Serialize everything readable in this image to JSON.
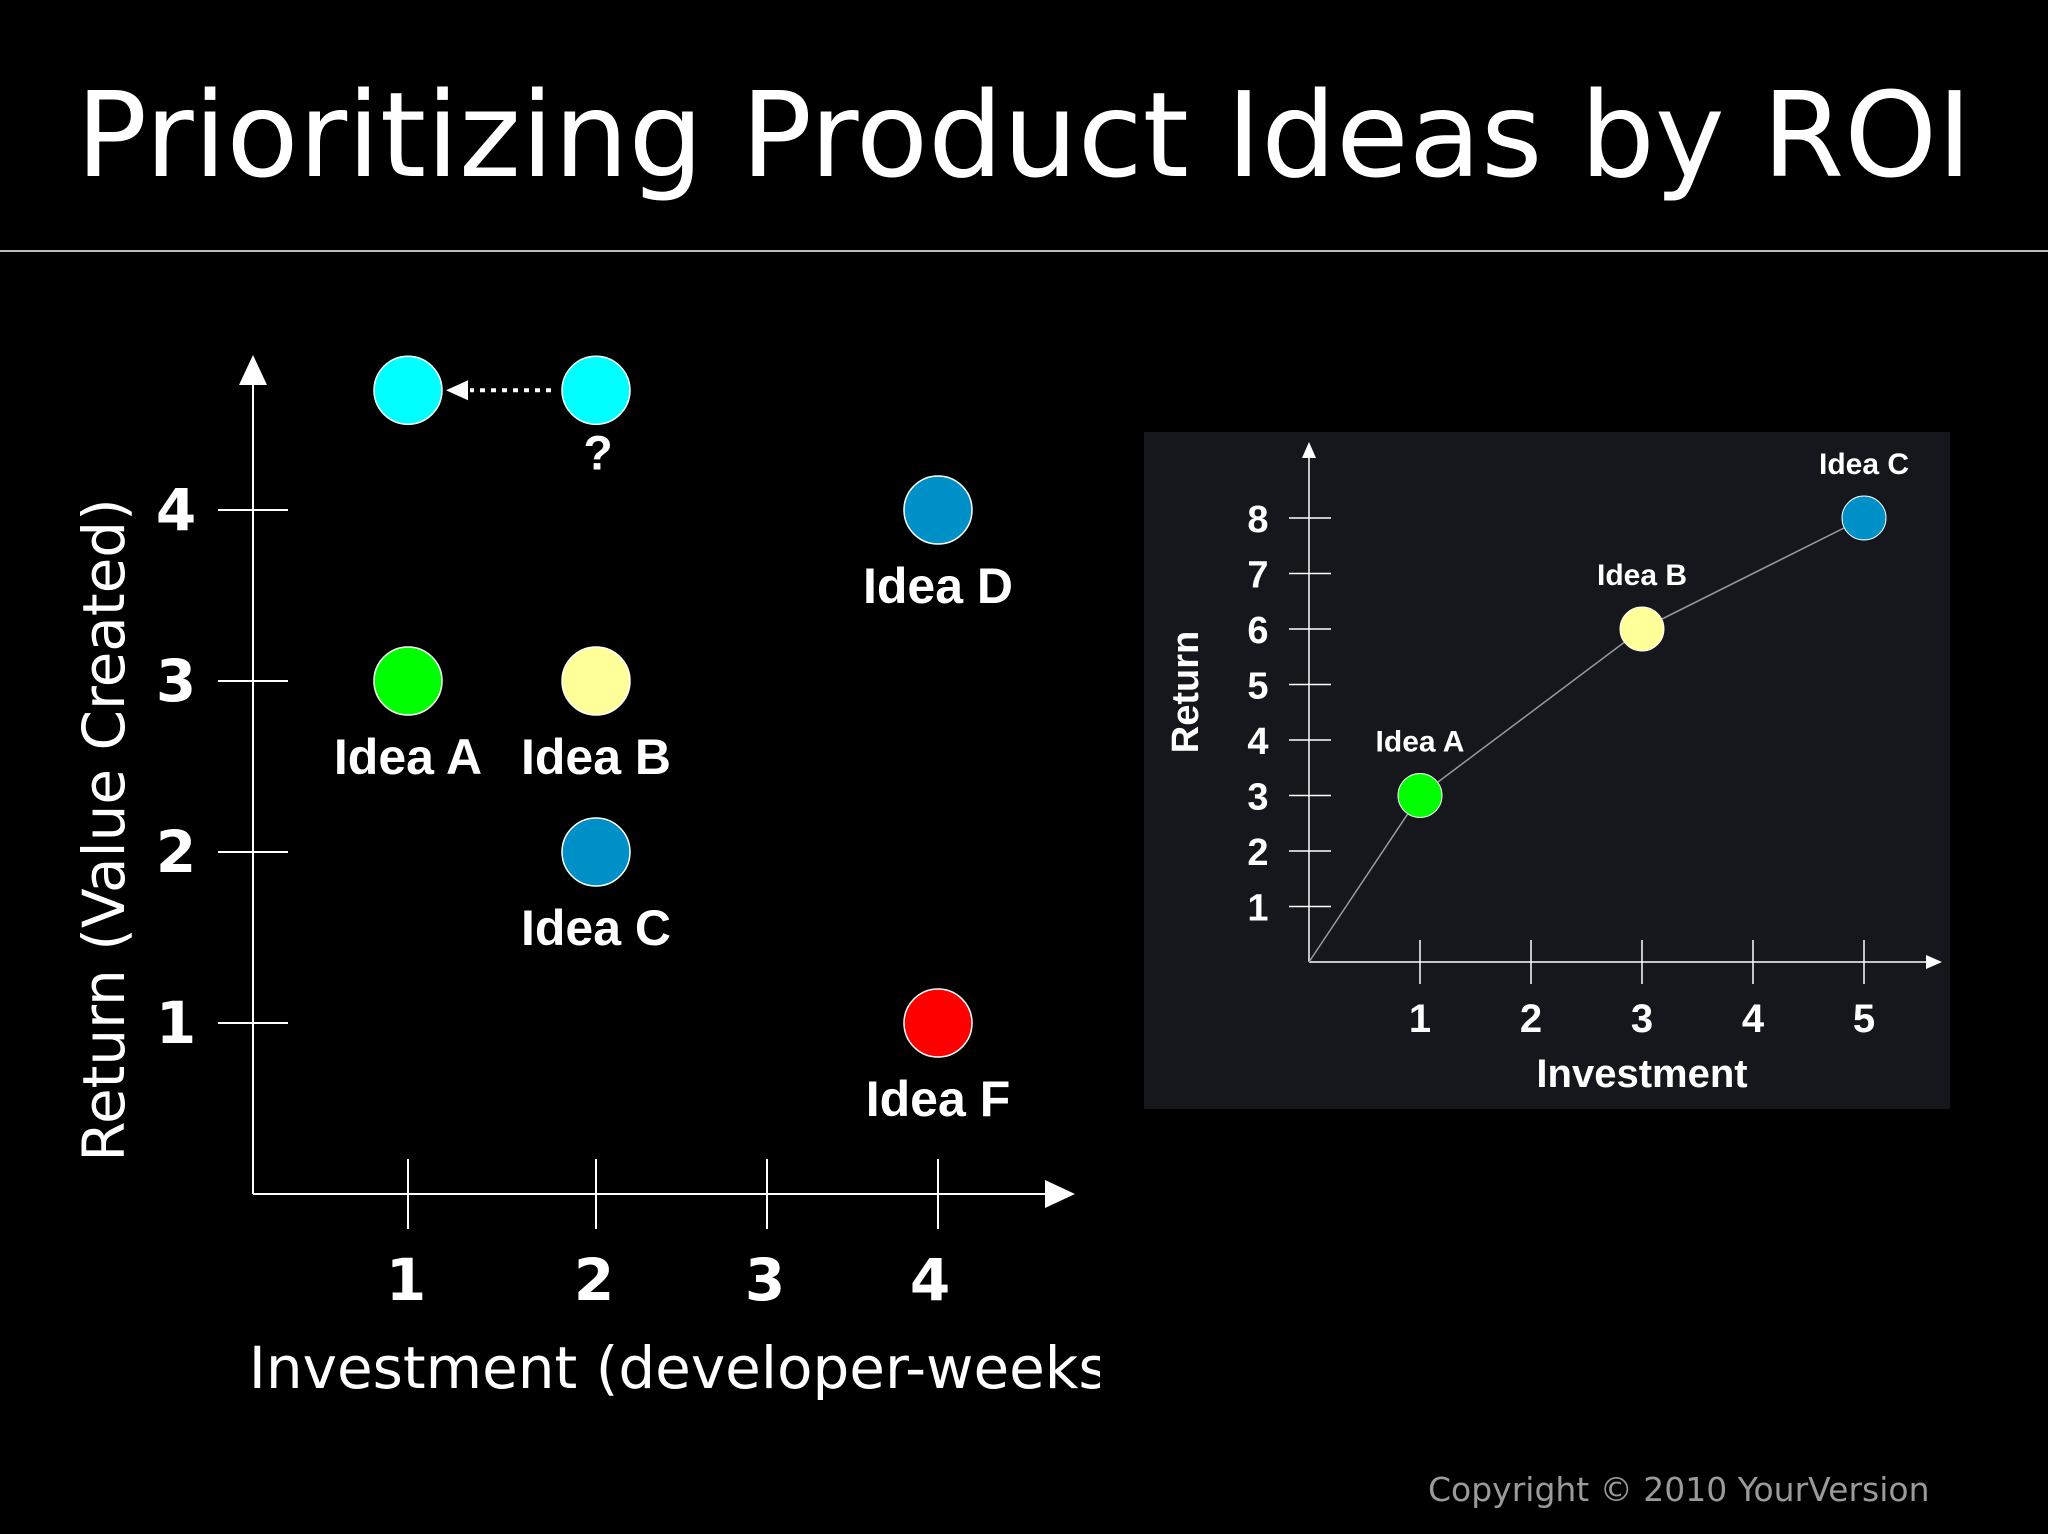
{
  "slide": {
    "title": "Prioritizing Product Ideas by ROI",
    "copyright": "Copyright © 2010 YourVersion"
  },
  "chart_data": [
    {
      "type": "scatter",
      "xlabel": "Investment (developer-weeks)",
      "ylabel": "Return (Value Created)",
      "xticks": [
        1,
        2,
        3,
        4
      ],
      "yticks": [
        1,
        2,
        3,
        4
      ],
      "points": [
        {
          "label": "",
          "x": 1,
          "y": 4.7,
          "color": "#00ffff"
        },
        {
          "label": "?",
          "x": 2,
          "y": 4.7,
          "color": "#00ffff"
        },
        {
          "label": "Idea D",
          "x": 4,
          "y": 4,
          "color": "#0090c8"
        },
        {
          "label": "Idea A",
          "x": 1,
          "y": 3,
          "color": "#00ff00"
        },
        {
          "label": "Idea B",
          "x": 2,
          "y": 3,
          "color": "#ffff99"
        },
        {
          "label": "Idea C",
          "x": 2,
          "y": 2,
          "color": "#0090c8"
        },
        {
          "label": "Idea F",
          "x": 4,
          "y": 1,
          "color": "#ff0000"
        }
      ],
      "annotations": [
        {
          "type": "dotted-arrow",
          "from_x": 2,
          "from_y": 4.7,
          "to_x": 1,
          "to_y": 4.7
        }
      ]
    },
    {
      "type": "line",
      "xlabel": "Investment",
      "ylabel": "Return",
      "xticks": [
        1,
        2,
        3,
        4,
        5
      ],
      "yticks": [
        1,
        2,
        3,
        4,
        5,
        6,
        7,
        8
      ],
      "points": [
        {
          "label": "",
          "x": 0,
          "y": 0,
          "color": ""
        },
        {
          "label": "Idea A",
          "x": 1,
          "y": 3,
          "color": "#00ff00"
        },
        {
          "label": "Idea B",
          "x": 3,
          "y": 6,
          "color": "#ffff99"
        },
        {
          "label": "Idea C",
          "x": 5,
          "y": 8,
          "color": "#0090c8"
        }
      ]
    }
  ]
}
